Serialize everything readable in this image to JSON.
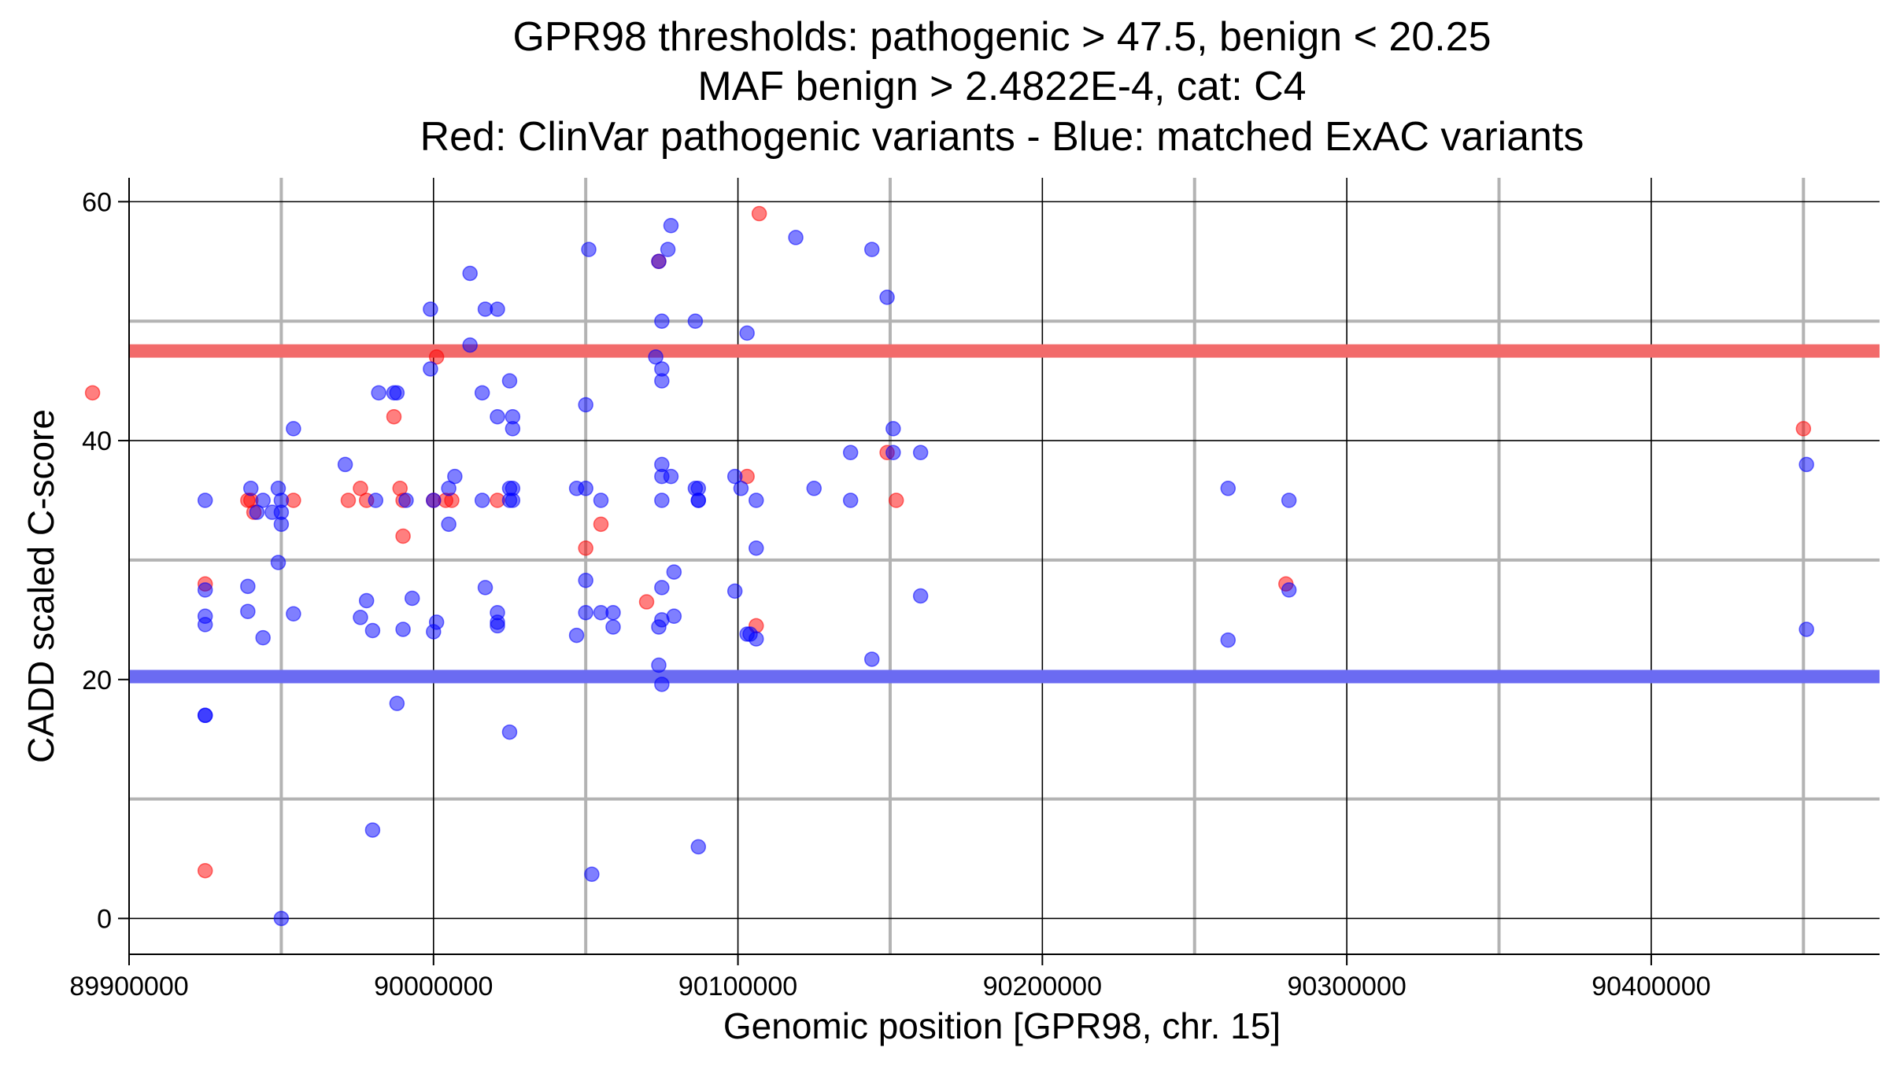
{
  "chart_data": {
    "type": "scatter",
    "title_lines": [
      "GPR98 thresholds: pathogenic > 47.5, benign < 20.25",
      "MAF benign > 2.4822E-4, cat: C4",
      "Red: ClinVar pathogenic variants - Blue: matched ExAC variants"
    ],
    "xlabel": "Genomic position [GPR98, chr. 15]",
    "ylabel": "CADD scaled C-score",
    "xlim": [
      89900000,
      90475000
    ],
    "ylim": [
      -3,
      62
    ],
    "x_ticks": [
      89900000,
      90000000,
      90100000,
      90200000,
      90300000,
      90400000
    ],
    "x_tick_labels": [
      "89900000",
      "90000000",
      "90100000",
      "90200000",
      "90300000",
      "90400000"
    ],
    "y_ticks": [
      0,
      20,
      40,
      60
    ],
    "y_tick_labels": [
      "0",
      "20",
      "40",
      "60"
    ],
    "x_minor_gridlines": [
      89950000,
      90050000,
      90150000,
      90250000,
      90350000,
      90450000
    ],
    "y_minor_gridlines": [
      10,
      30,
      50
    ],
    "grid": true,
    "thresholds": {
      "pathogenic": {
        "value": 47.5,
        "color": "#f26b6b"
      },
      "benign": {
        "value": 20.25,
        "color": "#6b6bf2"
      }
    },
    "series": [
      {
        "color": "#ff0000",
        "points": [
          [
            89925000,
            28
          ],
          [
            89925000,
            4
          ],
          [
            89939000,
            35
          ],
          [
            89940000,
            35
          ],
          [
            89941000,
            34
          ],
          [
            89954000,
            35
          ],
          [
            89972000,
            35
          ],
          [
            89976000,
            36
          ],
          [
            89978000,
            35
          ],
          [
            89987000,
            42
          ],
          [
            89888000,
            44
          ],
          [
            89989000,
            36
          ],
          [
            89990000,
            32
          ],
          [
            89990000,
            35
          ],
          [
            90000000,
            35
          ],
          [
            90001000,
            47
          ],
          [
            90004000,
            35
          ],
          [
            90006000,
            35
          ],
          [
            90021000,
            35
          ],
          [
            90050000,
            31
          ],
          [
            90055000,
            33
          ],
          [
            90070000,
            26.5
          ],
          [
            90074000,
            55
          ],
          [
            90103000,
            37
          ],
          [
            90106000,
            24.5
          ],
          [
            90107000,
            59
          ],
          [
            90149000,
            39
          ],
          [
            90152000,
            35
          ],
          [
            90280000,
            28
          ],
          [
            90450000,
            41
          ]
        ]
      },
      {
        "color": "#0000ff",
        "points": [
          [
            89925000,
            35
          ],
          [
            89925000,
            27.5
          ],
          [
            89925000,
            25.3
          ],
          [
            89925000,
            24.6
          ],
          [
            89925000,
            17
          ],
          [
            89925000,
            17
          ],
          [
            89939000,
            27.8
          ],
          [
            89939000,
            25.7
          ],
          [
            89940000,
            36
          ],
          [
            89942000,
            34
          ],
          [
            89944000,
            35
          ],
          [
            89944000,
            23.5
          ],
          [
            89947000,
            34
          ],
          [
            89949000,
            36
          ],
          [
            89950000,
            35
          ],
          [
            89950000,
            34
          ],
          [
            89950000,
            33
          ],
          [
            89949000,
            29.8
          ],
          [
            89950000,
            0
          ],
          [
            89954000,
            41
          ],
          [
            89954000,
            25.5
          ],
          [
            89971000,
            38
          ],
          [
            89976000,
            25.2
          ],
          [
            89978000,
            26.6
          ],
          [
            89980000,
            24.1
          ],
          [
            89980000,
            7.4
          ],
          [
            89981000,
            35
          ],
          [
            89982000,
            44
          ],
          [
            89987000,
            44
          ],
          [
            89988000,
            44
          ],
          [
            89988000,
            18
          ],
          [
            89990000,
            24.2
          ],
          [
            89991000,
            35
          ],
          [
            89993000,
            26.8
          ],
          [
            89999000,
            51
          ],
          [
            89999000,
            46
          ],
          [
            90000000,
            35
          ],
          [
            90000000,
            24
          ],
          [
            90001000,
            24.8
          ],
          [
            90005000,
            36
          ],
          [
            90005000,
            33
          ],
          [
            90007000,
            37
          ],
          [
            90012000,
            54
          ],
          [
            90012000,
            48
          ],
          [
            90016000,
            44
          ],
          [
            90016000,
            35
          ],
          [
            90017000,
            27.7
          ],
          [
            90017000,
            51
          ],
          [
            90021000,
            51
          ],
          [
            90021000,
            42
          ],
          [
            90021000,
            25.6
          ],
          [
            90021000,
            24.8
          ],
          [
            90021000,
            24.5
          ],
          [
            90025000,
            45
          ],
          [
            90025000,
            36
          ],
          [
            90025000,
            35
          ],
          [
            90025000,
            15.6
          ],
          [
            90026000,
            42
          ],
          [
            90026000,
            41
          ],
          [
            90026000,
            36
          ],
          [
            90026000,
            35
          ],
          [
            90047000,
            36
          ],
          [
            90047000,
            23.7
          ],
          [
            90050000,
            43
          ],
          [
            90050000,
            36
          ],
          [
            90050000,
            28.3
          ],
          [
            90050000,
            25.6
          ],
          [
            90051000,
            56
          ],
          [
            90052000,
            3.7
          ],
          [
            90055000,
            35
          ],
          [
            90055000,
            25.6
          ],
          [
            90059000,
            25.6
          ],
          [
            90059000,
            24.4
          ],
          [
            90073000,
            47
          ],
          [
            90074000,
            55
          ],
          [
            90074000,
            24.4
          ],
          [
            90074000,
            21.2
          ],
          [
            90075000,
            50
          ],
          [
            90075000,
            46
          ],
          [
            90075000,
            45
          ],
          [
            90075000,
            38
          ],
          [
            90075000,
            37
          ],
          [
            90075000,
            35
          ],
          [
            90075000,
            27.7
          ],
          [
            90075000,
            25
          ],
          [
            90075000,
            19.6
          ],
          [
            90077000,
            56
          ],
          [
            90078000,
            58
          ],
          [
            90078000,
            37
          ],
          [
            90079000,
            29
          ],
          [
            90079000,
            25.3
          ],
          [
            90086000,
            50
          ],
          [
            90086000,
            36
          ],
          [
            90087000,
            36
          ],
          [
            90087000,
            35
          ],
          [
            90087000,
            35
          ],
          [
            90087000,
            6
          ],
          [
            90099000,
            37
          ],
          [
            90099000,
            27.4
          ],
          [
            90101000,
            36
          ],
          [
            90103000,
            49
          ],
          [
            90103000,
            23.8
          ],
          [
            90104000,
            23.8
          ],
          [
            90106000,
            35
          ],
          [
            90106000,
            31
          ],
          [
            90106000,
            23.4
          ],
          [
            90119000,
            57
          ],
          [
            90125000,
            36
          ],
          [
            90137000,
            39
          ],
          [
            90137000,
            35
          ],
          [
            90144000,
            56
          ],
          [
            90144000,
            21.7
          ],
          [
            90149000,
            52
          ],
          [
            90151000,
            41
          ],
          [
            90151000,
            39
          ],
          [
            90160000,
            39
          ],
          [
            90160000,
            27
          ],
          [
            90261000,
            36
          ],
          [
            90261000,
            23.3
          ],
          [
            90281000,
            35
          ],
          [
            90281000,
            27.5
          ],
          [
            90451000,
            38
          ],
          [
            90451000,
            24.2
          ]
        ]
      }
    ]
  }
}
